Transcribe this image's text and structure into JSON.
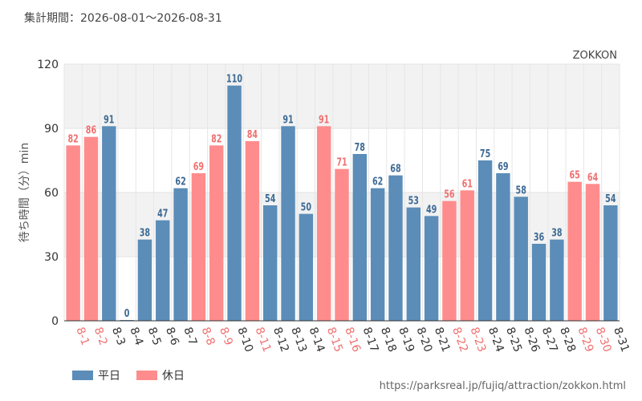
{
  "period_label": "集計期間：2026-08-01～2026-08-31",
  "brand": "ZOKKON",
  "url": "https://parksreal.jp/fujiq/attraction/zokkon.html",
  "legend": {
    "weekday": "平日",
    "holiday": "休日"
  },
  "colors": {
    "weekday": "#5b8db8",
    "holiday": "#ff8c8c",
    "weekday_label": "#3d6a94",
    "holiday_label": "#f07070",
    "band": "#f2f2f2"
  },
  "chart_data": {
    "type": "bar",
    "ylabel": "待ち時間（分）min",
    "xlabel": "",
    "ylim": [
      0,
      120
    ],
    "yticks": [
      0,
      30,
      60,
      90,
      120
    ],
    "categories": [
      "8-1",
      "8-2",
      "8-3",
      "8-4",
      "8-5",
      "8-6",
      "8-7",
      "8-8",
      "8-9",
      "8-10",
      "8-11",
      "8-12",
      "8-13",
      "8-14",
      "8-15",
      "8-16",
      "8-17",
      "8-18",
      "8-19",
      "8-20",
      "8-21",
      "8-22",
      "8-23",
      "8-24",
      "8-25",
      "8-26",
      "8-27",
      "8-28",
      "8-29",
      "8-30",
      "8-31"
    ],
    "values": [
      82,
      86,
      91,
      0,
      38,
      47,
      62,
      69,
      82,
      110,
      84,
      54,
      91,
      50,
      91,
      71,
      78,
      62,
      68,
      53,
      49,
      56,
      61,
      75,
      69,
      58,
      36,
      38,
      65,
      64,
      54
    ],
    "day_type": [
      "holiday",
      "holiday",
      "weekday",
      "weekday",
      "weekday",
      "weekday",
      "weekday",
      "holiday",
      "holiday",
      "weekday",
      "holiday",
      "weekday",
      "weekday",
      "weekday",
      "holiday",
      "holiday",
      "weekday",
      "weekday",
      "weekday",
      "weekday",
      "weekday",
      "holiday",
      "holiday",
      "weekday",
      "weekday",
      "weekday",
      "weekday",
      "weekday",
      "holiday",
      "holiday",
      "weekday"
    ]
  }
}
